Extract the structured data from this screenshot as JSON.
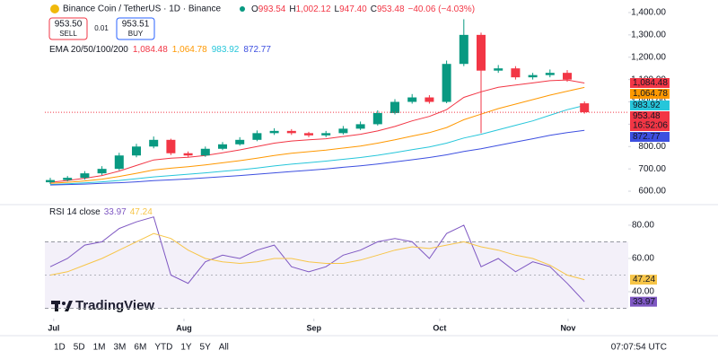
{
  "chart_data": {
    "type": "candlestick",
    "title": "Binance Coin / TetherUS · 1D · Binance",
    "last_bar": [
      {
        "prefix": "O",
        "label": "993.54"
      },
      {
        "prefix": "H",
        "label": "1,002.12"
      },
      {
        "prefix": "L",
        "label": "947.40"
      },
      {
        "prefix": "C",
        "label": "953.48"
      }
    ],
    "change_label": "−40.06 (−4.03%)",
    "sell": {
      "price": "953.50",
      "label": "SELL"
    },
    "spread": "0.01",
    "buy": {
      "price": "953.51",
      "label": "BUY"
    },
    "up_color": "#089981",
    "down_color": "#f23645",
    "open": [
      640,
      650,
      660,
      680,
      700,
      760,
      800,
      830,
      770,
      760,
      790,
      810,
      830,
      860,
      870,
      860,
      850,
      860,
      880,
      900,
      950,
      1000,
      1020,
      1000,
      1170,
      1300,
      1140,
      1150,
      1110,
      1120,
      1130,
      993.54
    ],
    "high": [
      660,
      668,
      690,
      712,
      772,
      812,
      845,
      835,
      778,
      800,
      820,
      842,
      872,
      882,
      878,
      866,
      870,
      892,
      912,
      962,
      1012,
      1035,
      1030,
      1185,
      1370,
      1310,
      1165,
      1160,
      1130,
      1145,
      1142,
      1002.12
    ],
    "low": [
      632,
      644,
      652,
      672,
      694,
      752,
      792,
      762,
      752,
      754,
      784,
      804,
      824,
      852,
      852,
      842,
      842,
      854,
      874,
      894,
      944,
      992,
      992,
      994,
      1160,
      860,
      1130,
      1100,
      1100,
      1110,
      1090,
      947.4
    ],
    "close": [
      650,
      660,
      680,
      700,
      760,
      800,
      830,
      770,
      760,
      790,
      810,
      830,
      860,
      870,
      860,
      850,
      860,
      880,
      900,
      950,
      1000,
      1020,
      1000,
      1170,
      1300,
      1140,
      1150,
      1110,
      1120,
      1130,
      1100,
      953.48
    ],
    "xticks": [
      {
        "value": 0.2,
        "label": "Jul"
      },
      {
        "value": 7.76,
        "label": "Aug"
      },
      {
        "value": 15.3,
        "label": "Sep"
      },
      {
        "value": 22.6,
        "label": "Oct"
      },
      {
        "value": 30.05,
        "label": "Nov"
      }
    ],
    "ylim": [
      564,
      1416
    ],
    "yticks": [
      {
        "value": 600,
        "label": "600.00"
      },
      {
        "value": 700,
        "label": "700.00"
      },
      {
        "value": 800,
        "label": "800.00"
      },
      {
        "value": 900,
        "label": "900.00"
      },
      {
        "value": 1000,
        "label": "1,000.00"
      },
      {
        "value": 1100,
        "label": "1,100.00"
      },
      {
        "value": 1200,
        "label": "1,200.00"
      },
      {
        "value": 1300,
        "label": "1,300.00"
      },
      {
        "value": 1400,
        "label": "1,400.00"
      }
    ],
    "last_price_label": "953.48",
    "countdown": "16:52:06",
    "ema": {
      "title": "EMA 20/50/100/200",
      "series": [
        {
          "color": "#f23645",
          "last_label": "1,084.48",
          "values": [
            640,
            648,
            658,
            670,
            690,
            715,
            740,
            748,
            752,
            760,
            772,
            785,
            800,
            815,
            825,
            830,
            835,
            845,
            855,
            870,
            890,
            915,
            935,
            965,
            1020,
            1045,
            1065,
            1075,
            1085,
            1095,
            1098,
            1084.48
          ]
        },
        {
          "color": "#ff9800",
          "last_label": "1,064.78",
          "values": [
            635,
            640,
            646,
            654,
            666,
            680,
            695,
            703,
            710,
            718,
            727,
            737,
            748,
            760,
            770,
            777,
            784,
            793,
            802,
            815,
            830,
            847,
            862,
            885,
            920,
            945,
            970,
            990,
            1010,
            1030,
            1048,
            1064.78
          ]
        },
        {
          "color": "#26c6da",
          "last_label": "983.92",
          "values": [
            630,
            633,
            637,
            642,
            648,
            656,
            664,
            670,
            676,
            682,
            689,
            696,
            704,
            713,
            721,
            728,
            735,
            743,
            751,
            761,
            773,
            786,
            798,
            815,
            838,
            855,
            875,
            895,
            915,
            940,
            965,
            983.92
          ]
        },
        {
          "color": "#3d4fe0",
          "last_label": "872.77",
          "values": [
            628,
            630,
            632,
            635,
            638,
            642,
            647,
            651,
            655,
            660,
            665,
            670,
            676,
            682,
            688,
            694,
            700,
            707,
            714,
            722,
            731,
            741,
            751,
            763,
            778,
            790,
            805,
            820,
            835,
            850,
            862,
            872.77
          ]
        }
      ]
    },
    "rsi": {
      "title": "RSI 14 close",
      "ylim": [
        26.5,
        85.9
      ],
      "yticks": [
        {
          "value": 40,
          "label": "40.00"
        },
        {
          "value": 60,
          "label": "60.00"
        },
        {
          "value": 80,
          "label": "80.00"
        }
      ],
      "bands": [
        30,
        70
      ],
      "midline": 50,
      "series": [
        {
          "color": "#7e57c2",
          "last_label": "33.97",
          "values": [
            55,
            60,
            68,
            70,
            78,
            82,
            85,
            50,
            45,
            58,
            62,
            60,
            65,
            68,
            55,
            52,
            55,
            62,
            65,
            70,
            72,
            70,
            60,
            75,
            80,
            55,
            60,
            52,
            58,
            55,
            45,
            33.97
          ]
        },
        {
          "color": "#f7c548",
          "last_label": "47.24",
          "values": [
            50,
            52,
            56,
            60,
            65,
            70,
            75,
            72,
            65,
            60,
            58,
            57,
            58,
            60,
            60,
            58,
            57,
            57,
            59,
            62,
            65,
            67,
            66,
            68,
            70,
            67,
            65,
            62,
            60,
            56,
            50,
            47.24
          ]
        }
      ]
    },
    "brand": "TradingView",
    "ranges": [
      "1D",
      "5D",
      "1M",
      "3M",
      "6M",
      "YTD",
      "1Y",
      "5Y",
      "All"
    ],
    "clock": "07:07:54 UTC"
  }
}
